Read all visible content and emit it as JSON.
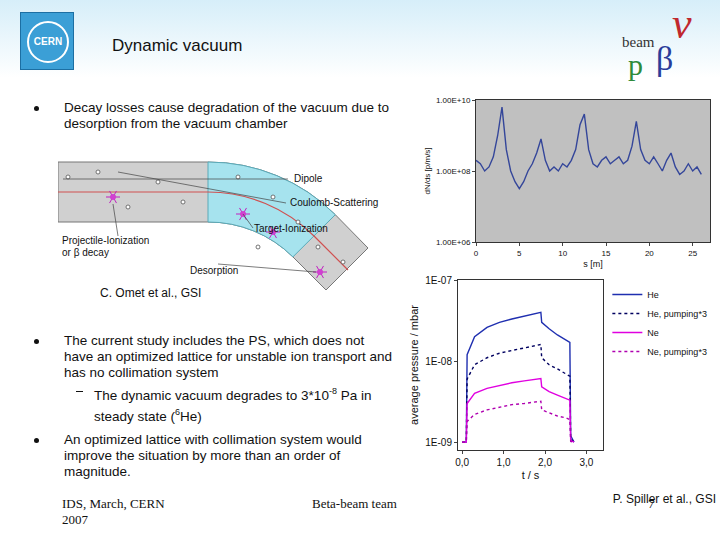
{
  "header": {
    "title": "Dynamic vacuum",
    "logos": {
      "left": "CERN",
      "right": [
        "beam",
        "ν",
        "β",
        "p"
      ]
    }
  },
  "bullets": [
    {
      "text": "Decay losses cause degradation of the vacuum due to desorption from the vacuum chamber"
    },
    {
      "text": "The current study includes the PS, which does not have an optimized lattice for unstable ion transport and has no collimation system",
      "sub": [
        [
          {
            "text": "The dynamic vacuum degrades to 3*10"
          },
          {
            "sup": "-8"
          },
          {
            "text": " Pa in steady state ("
          },
          {
            "sup": "6"
          },
          {
            "text": "He)"
          }
        ]
      ]
    },
    {
      "text": "An optimized lattice with collimation system would improve the situation by more than an order of magnitude."
    }
  ],
  "diagram": {
    "labels": {
      "dipole": "Dipole",
      "scattering": "Coulomb-Scattering",
      "target": "Target-Ionization",
      "projectile": [
        "Projectile-Ionization",
        "or β decay"
      ],
      "desorption": "Desorption"
    },
    "caption": "C. Omet et al., GSI"
  },
  "credits": {
    "pressure_chart": "P. Spiller et al., GSI"
  },
  "footer": {
    "left": "IDS, March, CERN 2007",
    "center": "Beta-beam team",
    "page": "7"
  },
  "chart_data": [
    {
      "type": "line",
      "x_label": "s [m]",
      "y_label": "dN/ds [p/m/s]",
      "log": "y",
      "grid": false,
      "x": [
        0,
        0.5,
        1,
        1.5,
        2,
        2.5,
        3,
        3.5,
        4,
        4.5,
        5,
        5.5,
        6,
        6.5,
        7,
        7.5,
        8,
        8.5,
        9,
        9.5,
        10,
        10.5,
        11,
        11.5,
        12,
        12.5,
        13,
        13.5,
        14,
        14.5,
        15,
        15.5,
        16,
        16.5,
        17,
        17.5,
        18,
        18.5,
        19,
        19.5,
        20,
        20.5,
        21,
        21.5,
        22,
        22.5,
        23,
        23.5,
        24,
        24.5,
        25,
        25.5,
        26
      ],
      "series": [
        {
          "color": "#34469a",
          "values": [
            200000000.0,
            160000000.0,
            100000000.0,
            130000000.0,
            250000000.0,
            1000000000.0,
            6300000000.0,
            400000000.0,
            100000000.0,
            50000000.0,
            32000000.0,
            50000000.0,
            100000000.0,
            160000000.0,
            320000000.0,
            800000000.0,
            200000000.0,
            100000000.0,
            130000000.0,
            100000000.0,
            160000000.0,
            130000000.0,
            200000000.0,
            400000000.0,
            2000000000.0,
            4000000000.0,
            400000000.0,
            160000000.0,
            130000000.0,
            200000000.0,
            250000000.0,
            160000000.0,
            200000000.0,
            250000000.0,
            160000000.0,
            200000000.0,
            500000000.0,
            2500000000.0,
            400000000.0,
            200000000.0,
            160000000.0,
            250000000.0,
            160000000.0,
            100000000.0,
            200000000.0,
            320000000.0,
            130000000.0,
            80000000.0,
            100000000.0,
            160000000.0,
            100000000.0,
            130000000.0,
            80000000.0
          ]
        }
      ],
      "xlim": [
        0,
        27
      ],
      "xticks": [
        0,
        5,
        10,
        15,
        20,
        25
      ],
      "ylim": [
        1000000.0,
        10000000000.0
      ],
      "yticks": [
        {
          "value": 1000000.0,
          "label": "1.00E+06"
        },
        {
          "value": 100000000.0,
          "label": "1.00E+08"
        },
        {
          "value": 10000000000.0,
          "label": "1.00E+10"
        }
      ]
    },
    {
      "type": "line",
      "x_label": "t / s",
      "y_label": "average pressure / mbar",
      "log": "y",
      "grid": false,
      "legend": "right",
      "x": [
        0,
        0.1,
        0.12,
        0.3,
        0.6,
        0.9,
        1.2,
        1.5,
        1.8,
        1.9,
        1.92,
        2.1,
        2.3,
        2.5,
        2.6,
        2.62,
        2.7
      ],
      "series": [
        {
          "name": "He",
          "color": "#1f2fb0",
          "line_style": "solid",
          "values": [
            1e-09,
            1e-09,
            1.2e-08,
            2e-08,
            2.6e-08,
            3e-08,
            3.3e-08,
            3.6e-08,
            3.9e-08,
            4e-08,
            3e-08,
            2.5e-08,
            2.1e-08,
            1.8e-08,
            1.7e-08,
            1.2e-09,
            1e-09
          ]
        },
        {
          "name": "He, pumping*3",
          "color": "#000060",
          "line_style": "dot",
          "values": [
            1e-09,
            1e-09,
            6e-09,
            9e-09,
            1.1e-08,
            1.25e-08,
            1.35e-08,
            1.45e-08,
            1.55e-08,
            1.6e-08,
            1.1e-08,
            9e-09,
            8e-09,
            7e-09,
            6.5e-09,
            1.1e-09,
            1e-09
          ]
        },
        {
          "name": "Ne",
          "color": "#e000e0",
          "line_style": "solid",
          "values": [
            1e-09,
            1e-09,
            3e-09,
            4e-09,
            4.6e-09,
            5e-09,
            5.4e-09,
            5.7e-09,
            6e-09,
            6.1e-09,
            4.8e-09,
            4.2e-09,
            3.8e-09,
            3.5e-09,
            3.3e-09,
            1.05e-09,
            1e-09
          ]
        },
        {
          "name": "Ne, pumping*3",
          "color": "#b000b0",
          "line_style": "dot",
          "values": [
            1e-09,
            1e-09,
            1.8e-09,
            2.2e-09,
            2.5e-09,
            2.7e-09,
            2.9e-09,
            3e-09,
            3.1e-09,
            3.2e-09,
            2.5e-09,
            2.3e-09,
            2.1e-09,
            2e-09,
            1.9e-09,
            1.02e-09,
            1e-09
          ]
        }
      ],
      "xlim": [
        -0.1,
        3.4
      ],
      "xticks": [
        {
          "value": 0,
          "label": "0,0"
        },
        {
          "value": 1,
          "label": "1,0"
        },
        {
          "value": 2,
          "label": "2,0"
        },
        {
          "value": 3,
          "label": "3,0"
        }
      ],
      "ylim": [
        8e-10,
        1e-07
      ],
      "yticks": [
        {
          "value": 1e-09,
          "label": "1E-09"
        },
        {
          "value": 1e-08,
          "label": "1E-08"
        },
        {
          "value": 1e-07,
          "label": "1E-07"
        }
      ]
    }
  ]
}
